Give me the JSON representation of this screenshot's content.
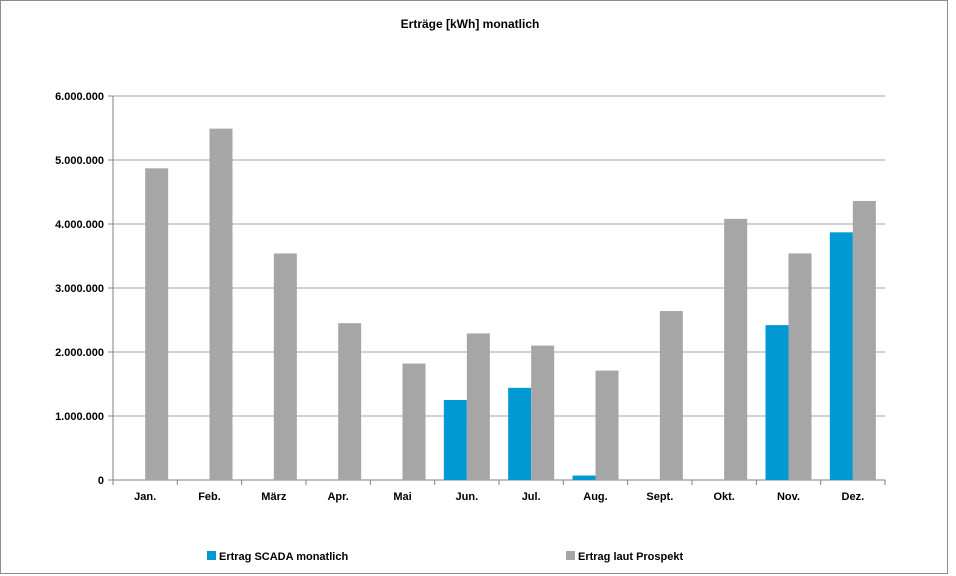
{
  "chart_data": {
    "type": "bar",
    "title": "Erträge [kWh] monatlich",
    "xlabel": "",
    "ylabel": "",
    "categories": [
      "Jan.",
      "Feb.",
      "März",
      "Apr.",
      "Mai",
      "Jun.",
      "Jul.",
      "Aug.",
      "Sept.",
      "Okt.",
      "Nov.",
      "Dez."
    ],
    "series": [
      {
        "name": "Ertrag SCADA monatlich",
        "color": "#0099d4",
        "values": [
          0,
          0,
          0,
          0,
          0,
          1250000,
          1440000,
          70000,
          0,
          0,
          2420000,
          3870000
        ]
      },
      {
        "name": "Ertrag laut Prospekt",
        "color": "#a6a6a6",
        "values": [
          4870000,
          5490000,
          3540000,
          2450000,
          1820000,
          2290000,
          2100000,
          1710000,
          2640000,
          4080000,
          3540000,
          4360000
        ]
      }
    ],
    "ylim": [
      0,
      6000000
    ],
    "yticks": [
      0,
      1000000,
      2000000,
      3000000,
      4000000,
      5000000,
      6000000
    ],
    "ytick_labels": [
      "0",
      "1.000.000",
      "2.000.000",
      "3.000.000",
      "4.000.000",
      "5.000.000",
      "6.000.000"
    ],
    "grid": true,
    "legend_position": "bottom"
  }
}
